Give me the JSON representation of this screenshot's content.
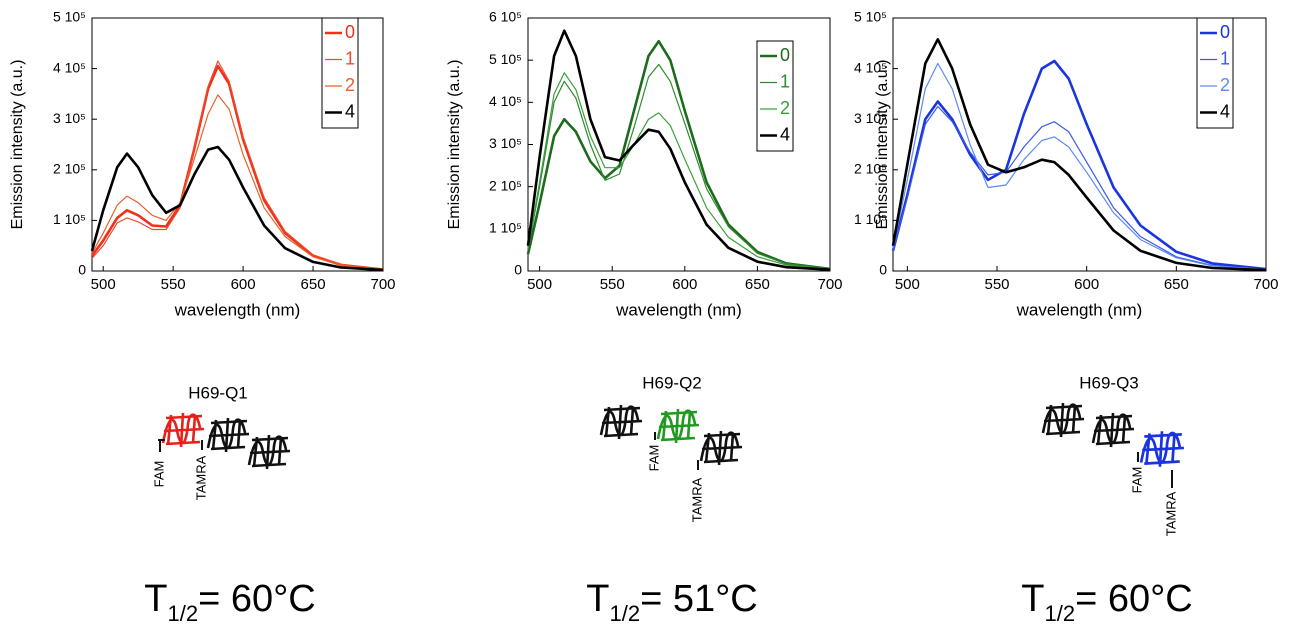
{
  "chart_data": [
    {
      "type": "line",
      "y_label": "Emission intensity (a.u.)",
      "x_label": "wavelength (nm)",
      "x": [
        492,
        500,
        510,
        517,
        525,
        535,
        545,
        555,
        565,
        575,
        582,
        590,
        600,
        615,
        630,
        650,
        670,
        700
      ],
      "xlim": [
        492,
        700
      ],
      "xticks": [
        500,
        550,
        600,
        650,
        700
      ],
      "ylim": [
        0,
        500000
      ],
      "yticks": [
        0,
        {
          "value": 100000,
          "label": "1 10⁵"
        },
        {
          "value": 200000,
          "label": "2 10⁵"
        },
        {
          "value": 300000,
          "label": "3 10⁵"
        },
        {
          "value": 400000,
          "label": "4 10⁵"
        },
        {
          "value": 500000,
          "label": "5 10⁵"
        }
      ],
      "legend": "upper right",
      "series": [
        {
          "name": "0",
          "color": "#f0301a",
          "values": [
            30000,
            60000,
            105000,
            120000,
            110000,
            90000,
            88000,
            130000,
            240000,
            360000,
            405000,
            370000,
            260000,
            140000,
            75000,
            30000,
            12000,
            3000
          ]
        },
        {
          "name": "1",
          "color": "#f04a2a",
          "values": [
            25000,
            50000,
            95000,
            105000,
            97000,
            82000,
            82000,
            125000,
            240000,
            365000,
            415000,
            375000,
            265000,
            145000,
            78000,
            32000,
            13000,
            3000
          ]
        },
        {
          "name": "2",
          "color": "#e8622a",
          "values": [
            35000,
            75000,
            130000,
            148000,
            135000,
            110000,
            100000,
            135000,
            220000,
            310000,
            348000,
            320000,
            230000,
            125000,
            68000,
            28000,
            11000,
            3000
          ]
        },
        {
          "name": "4",
          "color": "#000000",
          "values": [
            40000,
            120000,
            205000,
            232000,
            205000,
            150000,
            115000,
            130000,
            190000,
            240000,
            245000,
            220000,
            165000,
            90000,
            45000,
            18000,
            7000,
            2000
          ]
        }
      ]
    },
    {
      "type": "line",
      "y_label": "Emission intensity (a.u.)",
      "x_label": "wavelength (nm)",
      "x": [
        492,
        500,
        510,
        517,
        525,
        535,
        545,
        555,
        565,
        575,
        582,
        590,
        600,
        615,
        630,
        650,
        670,
        700
      ],
      "xlim": [
        492,
        700
      ],
      "xticks": [
        500,
        550,
        600,
        650,
        700
      ],
      "ylim": [
        0,
        600000
      ],
      "yticks": [
        0,
        {
          "value": 100000,
          "label": "1 10⁵"
        },
        {
          "value": 200000,
          "label": "2 10⁵"
        },
        {
          "value": 300000,
          "label": "3 10⁵"
        },
        {
          "value": 400000,
          "label": "4 10⁵"
        },
        {
          "value": 500000,
          "label": "5 10⁵"
        },
        {
          "value": 600000,
          "label": "6 10⁵"
        }
      ],
      "legend": "upper right",
      "series": [
        {
          "name": "0",
          "color": "#1d6b1d",
          "values": [
            40000,
            160000,
            320000,
            360000,
            330000,
            260000,
            220000,
            250000,
            380000,
            510000,
            545000,
            500000,
            380000,
            210000,
            110000,
            45000,
            18000,
            5000
          ]
        },
        {
          "name": "1",
          "color": "#2e8b2e",
          "values": [
            50000,
            200000,
            400000,
            450000,
            410000,
            300000,
            215000,
            230000,
            340000,
            460000,
            490000,
            450000,
            350000,
            195000,
            105000,
            42000,
            17000,
            5000
          ]
        },
        {
          "name": "2",
          "color": "#3aa03a",
          "values": [
            55000,
            210000,
            420000,
            470000,
            430000,
            320000,
            245000,
            245000,
            300000,
            360000,
            375000,
            345000,
            265000,
            150000,
            80000,
            34000,
            14000,
            4000
          ]
        },
        {
          "name": "4",
          "color": "#000000",
          "values": [
            60000,
            270000,
            510000,
            570000,
            510000,
            360000,
            270000,
            262000,
            300000,
            335000,
            330000,
            290000,
            210000,
            110000,
            55000,
            22000,
            9000,
            3000
          ]
        }
      ]
    },
    {
      "type": "line",
      "y_label": "Emission intensity (a.u.)",
      "x_label": "wavelength (nm)",
      "x": [
        492,
        500,
        510,
        517,
        525,
        535,
        545,
        555,
        565,
        575,
        582,
        590,
        600,
        615,
        630,
        650,
        670,
        700
      ],
      "xlim": [
        492,
        700
      ],
      "xticks": [
        500,
        550,
        600,
        650,
        700
      ],
      "ylim": [
        0,
        500000
      ],
      "yticks": [
        0,
        {
          "value": 100000,
          "label": "1 10⁵"
        },
        {
          "value": 200000,
          "label": "2 10⁵"
        },
        {
          "value": 300000,
          "label": "3 10⁵"
        },
        {
          "value": 400000,
          "label": "4 10⁵"
        },
        {
          "value": 500000,
          "label": "5 10⁵"
        }
      ],
      "legend": "upper right",
      "series": [
        {
          "name": "0",
          "color": "#1a35e0",
          "values": [
            40000,
            150000,
            300000,
            335000,
            300000,
            230000,
            180000,
            200000,
            310000,
            400000,
            415000,
            380000,
            290000,
            165000,
            90000,
            38000,
            15000,
            4000
          ]
        },
        {
          "name": "1",
          "color": "#3a5ae8",
          "values": [
            40000,
            145000,
            290000,
            325000,
            295000,
            235000,
            190000,
            195000,
            245000,
            285000,
            295000,
            275000,
            215000,
            125000,
            68000,
            28000,
            11000,
            3000
          ]
        },
        {
          "name": "2",
          "color": "#5e8af0",
          "values": [
            45000,
            180000,
            360000,
            410000,
            360000,
            250000,
            165000,
            170000,
            220000,
            258000,
            265000,
            245000,
            195000,
            115000,
            62000,
            26000,
            10000,
            3000
          ]
        },
        {
          "name": "4",
          "color": "#000000",
          "values": [
            50000,
            210000,
            410000,
            458000,
            400000,
            290000,
            210000,
            195000,
            205000,
            220000,
            215000,
            190000,
            145000,
            80000,
            40000,
            16000,
            6000,
            2000
          ]
        }
      ]
    }
  ],
  "panels": [
    {
      "construct": "H69-Q1",
      "donor": "FAM",
      "acceptor": "TAMRA",
      "t_half": {
        "symbol": "T",
        "subscript": "1/2",
        "text": "= 60°C"
      }
    },
    {
      "construct": "H69-Q2",
      "donor": "FAM",
      "acceptor": "TAMRA",
      "t_half": {
        "symbol": "T",
        "subscript": "1/2",
        "text": "= 51°C"
      }
    },
    {
      "construct": "H69-Q3",
      "donor": "FAM",
      "acceptor": "TAMRA",
      "t_half": {
        "symbol": "T",
        "subscript": "1/2",
        "text": "= 60°C"
      }
    }
  ]
}
